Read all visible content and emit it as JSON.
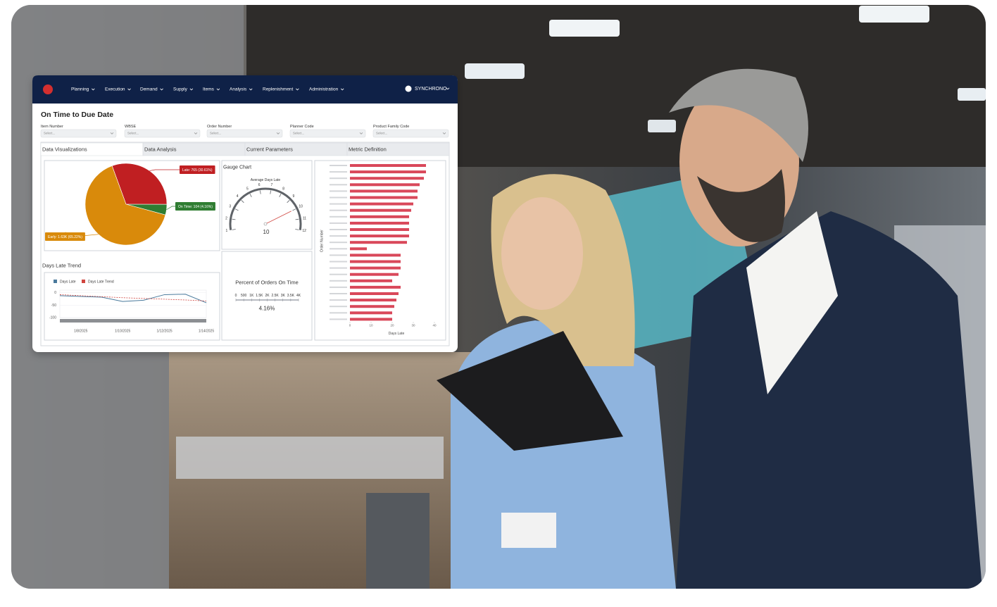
{
  "header": {
    "nav": [
      "Planning",
      "Execution",
      "Demand",
      "Supply",
      "Items",
      "Analysis",
      "Replenishment",
      "Administration"
    ],
    "user": "SYNCHRONO"
  },
  "page": {
    "title": "On Time to Due Date"
  },
  "filters": [
    {
      "label": "Item Number",
      "placeholder": "Select..."
    },
    {
      "label": "WBSE",
      "placeholder": "Select..."
    },
    {
      "label": "Order Number",
      "placeholder": "Select..."
    },
    {
      "label": "Planner Code",
      "placeholder": "Select..."
    },
    {
      "label": "Product Family Code",
      "placeholder": "Select..."
    }
  ],
  "tabs": [
    "Data Visualizations",
    "Data Analysis",
    "Current Parameters",
    "Metric Definition"
  ],
  "chart_data": [
    {
      "type": "pie",
      "categories": [
        "Late",
        "On Time",
        "Early"
      ],
      "values": [
        30.61,
        4.16,
        65.22
      ],
      "value_labels": [
        "Late: 765 (30.61%)",
        "On Time: 104 (4.16%)",
        "Early: 1.63K (65.22%)"
      ],
      "colors": [
        "#c01f22",
        "#2f7d32",
        "#d98a0b"
      ]
    },
    {
      "type": "gauge",
      "title": "Gauge Chart",
      "subtitle": "Average Days Late",
      "value": 10,
      "ylim": [
        1,
        12
      ],
      "yticks": [
        1,
        2,
        3,
        4,
        5,
        6,
        7,
        8,
        9,
        10,
        11,
        12
      ],
      "color": "#5f6368"
    },
    {
      "type": "bullet",
      "title": "Percent of Orders On Time",
      "value": 4.16,
      "value_label": "4.16%",
      "xlim": [
        0,
        4000
      ],
      "xticks": [
        0,
        500,
        {
          "value": 1000,
          "label": "1K"
        },
        {
          "value": 1500,
          "label": "1.5K"
        },
        {
          "value": 2000,
          "label": "2K"
        },
        {
          "value": 2500,
          "label": "2.5K"
        },
        {
          "value": 3000,
          "label": "3K"
        },
        {
          "value": 3500,
          "label": "3.5K"
        },
        {
          "value": 4000,
          "label": "4K"
        }
      ]
    },
    {
      "type": "line",
      "title": "Days Late Trend",
      "x": [
        null,
        "1/8/2025",
        null,
        "1/10/2025",
        null,
        "1/12/2025",
        null,
        "1/14/2025"
      ],
      "series": [
        {
          "name": "Days Late",
          "color": "#4a7a9c",
          "values": [
            -12,
            -15,
            -18,
            -35,
            -30,
            -8,
            -6,
            -40
          ]
        },
        {
          "name": "Days Late Trend",
          "color": "#d0453f",
          "values": [
            -8,
            -12,
            -16,
            -20,
            -23,
            -26,
            -29,
            -33
          ]
        }
      ],
      "ylim": [
        -110,
        10
      ],
      "yticks": [
        0,
        -50,
        -100
      ]
    },
    {
      "type": "bar",
      "xlabel": "Days Late",
      "ylabel": "Order Number",
      "values": [
        36,
        36,
        35,
        33,
        32,
        32,
        30,
        29,
        28,
        28,
        28,
        28,
        27,
        8,
        24,
        24,
        24,
        23,
        20,
        24,
        23,
        22,
        21,
        20,
        20
      ],
      "color": "#d9485a",
      "xlim": [
        0,
        40
      ],
      "xticks": [
        0,
        10,
        20,
        30,
        40
      ]
    }
  ]
}
